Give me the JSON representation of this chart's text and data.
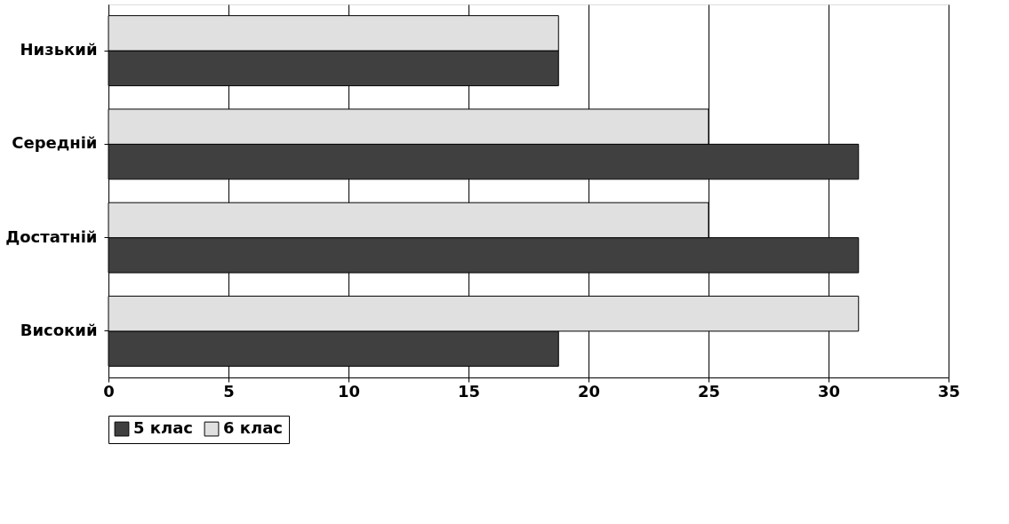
{
  "chart_data": {
    "type": "bar",
    "orientation": "horizontal",
    "categories": [
      "Низький",
      "Середній",
      "Достатній",
      "Високий"
    ],
    "series": [
      {
        "name": "5 клас",
        "color": "#404040",
        "values": [
          18.75,
          31.25,
          31.25,
          18.75
        ]
      },
      {
        "name": "6 клас",
        "color": "#e0e0e0",
        "values": [
          18.75,
          25,
          25,
          31.25
        ]
      }
    ],
    "xlim": [
      0,
      35
    ],
    "xticks": [
      0,
      5,
      10,
      15,
      20,
      25,
      30,
      35
    ],
    "grid": "x",
    "legend": "bottom"
  }
}
